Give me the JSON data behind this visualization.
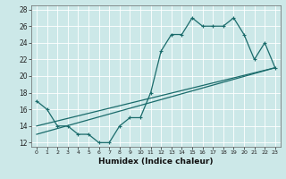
{
  "title": "",
  "xlabel": "Humidex (Indice chaleur)",
  "bg_color": "#cce8e8",
  "line_color": "#1a6b6b",
  "xlim": [
    -0.5,
    23.5
  ],
  "ylim": [
    11.5,
    28.5
  ],
  "xticks": [
    0,
    1,
    2,
    3,
    4,
    5,
    6,
    7,
    8,
    9,
    10,
    11,
    12,
    13,
    14,
    15,
    16,
    17,
    18,
    19,
    20,
    21,
    22,
    23
  ],
  "yticks": [
    12,
    14,
    16,
    18,
    20,
    22,
    24,
    26,
    28
  ],
  "line1_x": [
    0,
    1,
    2,
    3,
    4,
    5,
    6,
    7,
    8,
    9,
    10,
    11,
    12,
    13,
    14,
    15,
    16,
    17,
    18,
    19,
    20,
    21,
    22,
    23
  ],
  "line1_y": [
    17,
    16,
    14,
    14,
    13,
    13,
    12,
    12,
    14,
    15,
    15,
    18,
    23,
    25,
    25,
    27,
    26,
    26,
    26,
    27,
    25,
    22,
    24,
    21
  ],
  "line2_x": [
    0,
    23
  ],
  "line2_y": [
    13,
    21
  ],
  "line3_x": [
    0,
    23
  ],
  "line3_y": [
    14,
    21
  ]
}
